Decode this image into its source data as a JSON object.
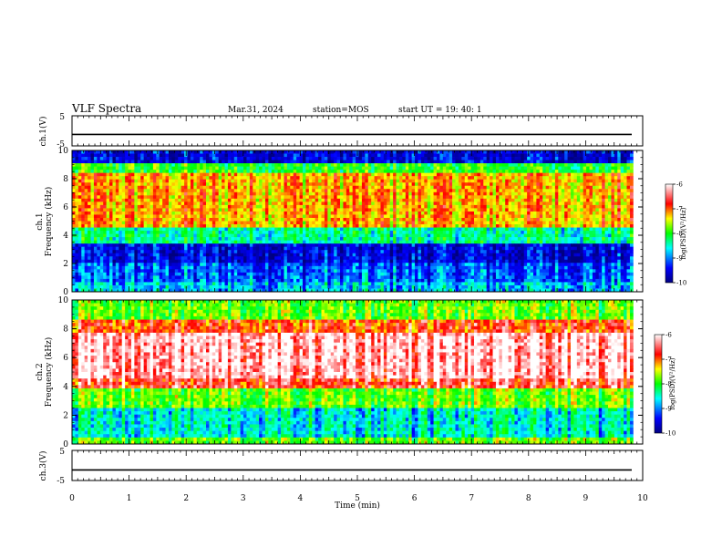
{
  "header": {
    "title": "VLF Spectra",
    "date": "Mar.31, 2024",
    "station": "station=MOS",
    "start": "start  UT =   19: 40: 1"
  },
  "chart_data": [
    {
      "type": "line",
      "name": "ch1-waveform",
      "ylabel": "ch.1(V)",
      "ylim": [
        -5,
        5
      ],
      "yticks": [
        "5",
        "-5"
      ],
      "xlim": [
        0,
        10
      ],
      "level": -1.2
    },
    {
      "type": "heatmap",
      "name": "ch1-spectrogram",
      "ylabel": "ch.1\nFrequency (kHz)",
      "ylabel_lines": [
        "ch.1",
        "Frequency (kHz)"
      ],
      "ylim": [
        0,
        10
      ],
      "yticks": [
        "0",
        "2",
        "4",
        "6",
        "8",
        "10"
      ],
      "xlim": [
        0,
        9.83
      ],
      "colorbar": {
        "label": "log(PSD)(V²/Hz)",
        "range": [
          -10,
          -6
        ],
        "ticks": [
          "-6",
          "-7",
          "-8",
          "-9",
          "-10"
        ]
      },
      "bands": [
        {
          "f0": 0,
          "f1": 0.6,
          "level": 0.3
        },
        {
          "f0": 0.6,
          "f1": 2.0,
          "level": 0.22
        },
        {
          "f0": 2.0,
          "f1": 3.3,
          "level": 0.12
        },
        {
          "f0": 3.3,
          "f1": 4.5,
          "level": 0.4
        },
        {
          "f0": 4.5,
          "f1": 8.5,
          "level": 0.72
        },
        {
          "f0": 8.5,
          "f1": 9.2,
          "level": 0.5
        },
        {
          "f0": 9.2,
          "f1": 10,
          "level": 0.12
        }
      ]
    },
    {
      "type": "heatmap",
      "name": "ch2-spectrogram",
      "ylabel": "ch.2\nFrequency (kHz)",
      "ylabel_lines": [
        "ch.2",
        "Frequency (kHz)"
      ],
      "ylim": [
        0,
        10
      ],
      "yticks": [
        "0",
        "2",
        "4",
        "6",
        "8",
        "10"
      ],
      "xlim": [
        0,
        9.83
      ],
      "colorbar": {
        "label": "log(PSD)(V²/Hz)",
        "range": [
          -10,
          -6
        ],
        "ticks": [
          "-6",
          "-7",
          "-8",
          "-9",
          "-10"
        ]
      },
      "bands": [
        {
          "f0": 0,
          "f1": 0.5,
          "level": 0.55
        },
        {
          "f0": 0.5,
          "f1": 2.5,
          "level": 0.35
        },
        {
          "f0": 2.5,
          "f1": 3.8,
          "level": 0.55
        },
        {
          "f0": 3.8,
          "f1": 4.5,
          "level": 0.85
        },
        {
          "f0": 4.5,
          "f1": 7.8,
          "level": 0.96
        },
        {
          "f0": 7.8,
          "f1": 8.7,
          "level": 0.8
        },
        {
          "f0": 8.7,
          "f1": 10,
          "level": 0.55
        }
      ]
    },
    {
      "type": "line",
      "name": "ch3-waveform",
      "ylabel": "ch.3(V)",
      "ylim": [
        -5,
        5
      ],
      "yticks": [
        "5",
        "-5"
      ],
      "xlim": [
        0,
        10
      ],
      "level": -1.5
    }
  ],
  "xaxis": {
    "label": "Time (min)",
    "range": [
      0,
      10
    ],
    "ticks": [
      "0",
      "1",
      "2",
      "3",
      "4",
      "5",
      "6",
      "7",
      "8",
      "9",
      "10"
    ]
  },
  "colors": {
    "colormap": [
      "#000080",
      "#0000ff",
      "#00ffff",
      "#00ff00",
      "#ffff00",
      "#ff0000",
      "#ffffff"
    ]
  }
}
